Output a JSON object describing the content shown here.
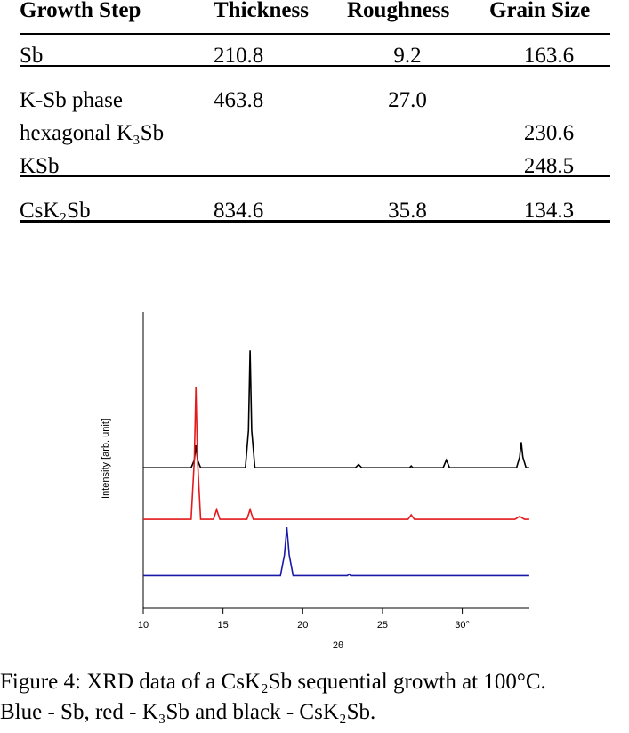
{
  "table": {
    "header": [
      "Growth Step",
      "Thickness",
      "Roughness",
      "Grain Size"
    ],
    "groups": [
      [
        [
          "Sb",
          "210.8",
          "9.2",
          "163.6"
        ]
      ],
      [
        [
          "K-Sb phase",
          "463.8",
          "27.0",
          null
        ],
        [
          "hexagonal K₃Sb",
          null,
          null,
          "230.6"
        ],
        [
          "KSb",
          null,
          null,
          "248.5"
        ]
      ],
      [
        [
          "CsK₂Sb",
          "834.6",
          "35.8",
          "134.3"
        ]
      ]
    ]
  },
  "chart_data": {
    "type": "line",
    "ylabel": "Intensity [arb. unit]",
    "xlabel": "2θ",
    "xlim": [
      10,
      34.2
    ],
    "xticks": [
      10,
      15,
      20,
      25,
      {
        "value": 30,
        "label": "30°"
      }
    ],
    "ylim": [
      0,
      100
    ],
    "series": [
      {
        "color": "#000000",
        "x": [
          10,
          13.0,
          13.2,
          13.3,
          13.4,
          13.6,
          16.4,
          16.6,
          16.7,
          16.8,
          17.0,
          23.3,
          23.5,
          23.7,
          26.7,
          26.8,
          26.9,
          28.8,
          29.0,
          29.2,
          33.4,
          33.6,
          33.7,
          33.8,
          34.0,
          34.2
        ],
        "values": [
          47.4,
          47.4,
          50,
          55,
          50,
          47.4,
          47.4,
          60,
          87,
          60,
          47.4,
          47.4,
          48.5,
          47.4,
          47.4,
          48,
          47.4,
          47.4,
          50,
          47.4,
          47.4,
          51,
          56,
          51,
          47.4,
          47.4
        ]
      },
      {
        "color": "#e41a1c",
        "x": [
          10,
          13.0,
          13.2,
          13.3,
          13.4,
          13.6,
          14.4,
          14.6,
          14.8,
          16.5,
          16.7,
          16.9,
          26.6,
          26.8,
          27.0,
          33.3,
          33.6,
          33.9,
          34.2
        ],
        "values": [
          30,
          30,
          50,
          74.5,
          50,
          30,
          30,
          33.3,
          30,
          30,
          33.3,
          30,
          30,
          31.5,
          30,
          30,
          31,
          30,
          30
        ]
      },
      {
        "color": "#1a1aa8",
        "x": [
          10,
          18.6,
          18.85,
          19.0,
          19.15,
          19.4,
          22.8,
          22.9,
          23.0,
          34.2
        ],
        "values": [
          11,
          11,
          18,
          27.3,
          18,
          11,
          11,
          11.5,
          11,
          11
        ]
      }
    ]
  },
  "caption": [
    "Figure 4: XRD data of a CsK₂Sb sequential growth at 100°C.",
    "Blue - Sb, red - K₃Sb and black - CsK₂Sb."
  ]
}
